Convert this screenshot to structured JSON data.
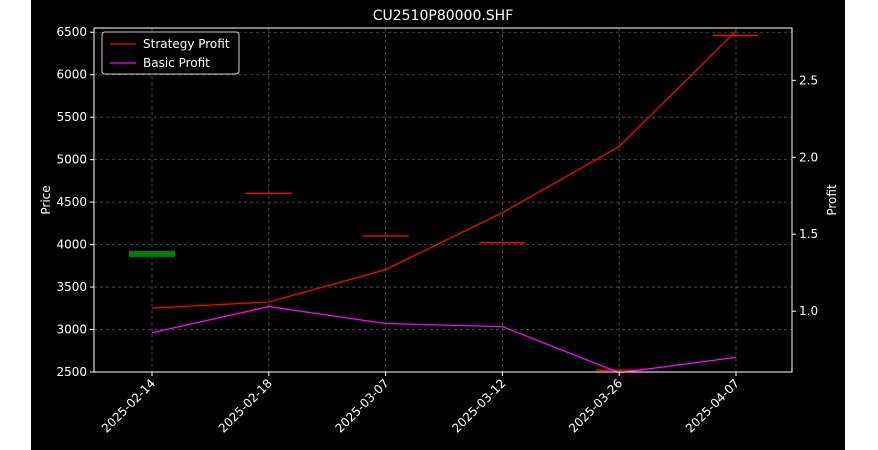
{
  "chart_data": {
    "type": "line",
    "title": "CU2510P80000.SHF",
    "xlabel": "",
    "ylabel": "Price",
    "ylabel_right": "Profit",
    "categories": [
      "2025-02-14",
      "2025-02-18",
      "2025-03-07",
      "2025-03-12",
      "2025-03-26",
      "2025-04-07"
    ],
    "y_left": {
      "lim": [
        2500,
        6550
      ],
      "ticks": [
        2500,
        3000,
        3500,
        4000,
        4500,
        5000,
        5500,
        6000,
        6500
      ]
    },
    "y_right": {
      "lim": [
        0.605,
        2.84
      ],
      "ticks": [
        1.0,
        1.5,
        2.0,
        2.5
      ],
      "tick_labels": [
        "1.0",
        "1.5",
        "2.0",
        "2.5"
      ]
    },
    "candles": [
      {
        "date": "2025-02-14",
        "open": 3925,
        "close": 3855,
        "color": "#008000"
      },
      {
        "date": "2025-02-18",
        "open": 4612,
        "close": 4612,
        "color": "#ff0000"
      },
      {
        "date": "2025-03-07",
        "open": 4110,
        "close": 4105,
        "color": "#ff0000"
      },
      {
        "date": "2025-03-12",
        "open": 4030,
        "close": 4030,
        "color": "#ff0000"
      },
      {
        "date": "2025-03-26",
        "open": 2530,
        "close": 2530,
        "color": "#ff0000"
      },
      {
        "date": "2025-04-07",
        "open": 6470,
        "close": 6470,
        "color": "#ff0000"
      }
    ],
    "series": [
      {
        "name": "Strategy Profit",
        "axis": "right",
        "color": "#ff0000",
        "values": [
          1.02,
          1.06,
          1.27,
          1.64,
          2.07,
          2.82
        ]
      },
      {
        "name": "Basic Profit",
        "axis": "right",
        "color": "#ff00ff",
        "values": [
          0.86,
          1.03,
          0.92,
          0.9,
          0.6,
          0.7
        ]
      }
    ],
    "grid": true,
    "legend": "top-left",
    "colors": {
      "figure_bg": "#000000",
      "axes_bg": "#000000",
      "text": "#ffffff",
      "grid": "#555555"
    }
  }
}
